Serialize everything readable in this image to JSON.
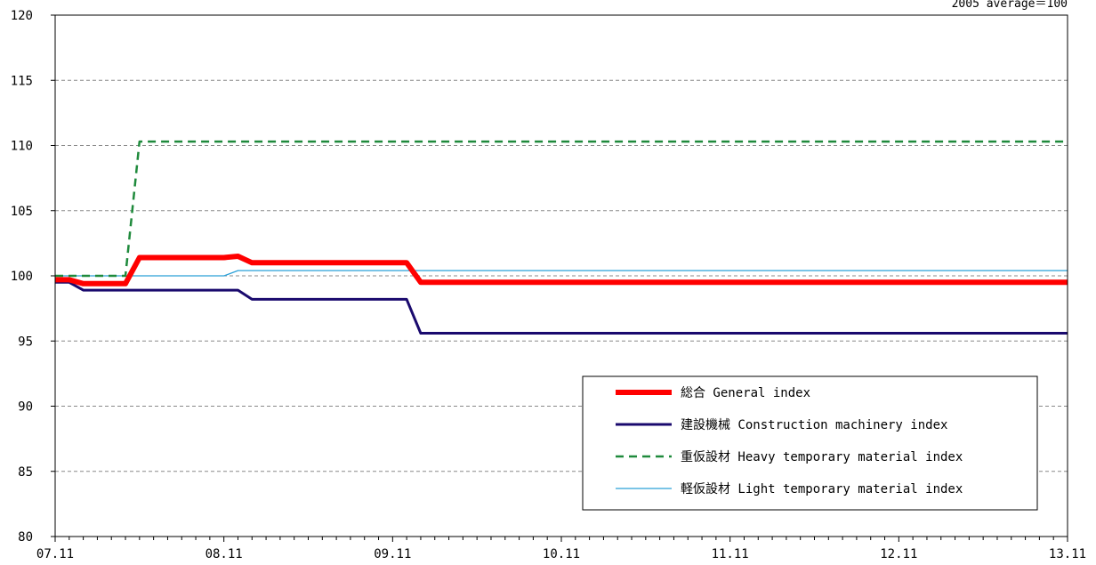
{
  "chart_data": {
    "type": "line",
    "note": "2005 average＝100",
    "ylim": [
      80,
      120
    ],
    "yticks": [
      80,
      85,
      90,
      95,
      100,
      105,
      110,
      115,
      120
    ],
    "xlim": [
      0,
      72
    ],
    "xticks": [
      {
        "x": 0,
        "label": "07.11"
      },
      {
        "x": 12,
        "label": "08.11"
      },
      {
        "x": 24,
        "label": "09.11"
      },
      {
        "x": 36,
        "label": "10.11"
      },
      {
        "x": 48,
        "label": "11.11"
      },
      {
        "x": 60,
        "label": "12.11"
      },
      {
        "x": 72,
        "label": "13.11"
      }
    ],
    "minor_ticks_per_major": 12,
    "grid": "horizontal dashed",
    "legend_position": "bottom-right",
    "series": [
      {
        "name": "総合 General index",
        "color": "#ff0000",
        "style": "thick",
        "points": [
          [
            0,
            99.7
          ],
          [
            1,
            99.7
          ],
          [
            2,
            99.4
          ],
          [
            5,
            99.4
          ],
          [
            6,
            101.4
          ],
          [
            12,
            101.4
          ],
          [
            13,
            101.5
          ],
          [
            14,
            101.0
          ],
          [
            25,
            101.0
          ],
          [
            26,
            99.5
          ],
          [
            72,
            99.5
          ]
        ]
      },
      {
        "name": "建設機械 Construction machinery index",
        "color": "#1a0a6e",
        "style": "solid",
        "points": [
          [
            0,
            99.5
          ],
          [
            1,
            99.5
          ],
          [
            2,
            98.9
          ],
          [
            13,
            98.9
          ],
          [
            14,
            98.2
          ],
          [
            25,
            98.2
          ],
          [
            26,
            95.6
          ],
          [
            72,
            95.6
          ]
        ]
      },
      {
        "name": "重仮設材 Heavy temporary material index",
        "color": "#1f8a3c",
        "style": "dashed",
        "points": [
          [
            0,
            100.0
          ],
          [
            5,
            100.0
          ],
          [
            6,
            110.3
          ],
          [
            72,
            110.3
          ]
        ]
      },
      {
        "name": "軽仮設材 Light temporary material index",
        "color": "#2aa0d8",
        "style": "thin",
        "points": [
          [
            0,
            100.0
          ],
          [
            12,
            100.0
          ],
          [
            13,
            100.4
          ],
          [
            72,
            100.4
          ]
        ]
      }
    ]
  }
}
